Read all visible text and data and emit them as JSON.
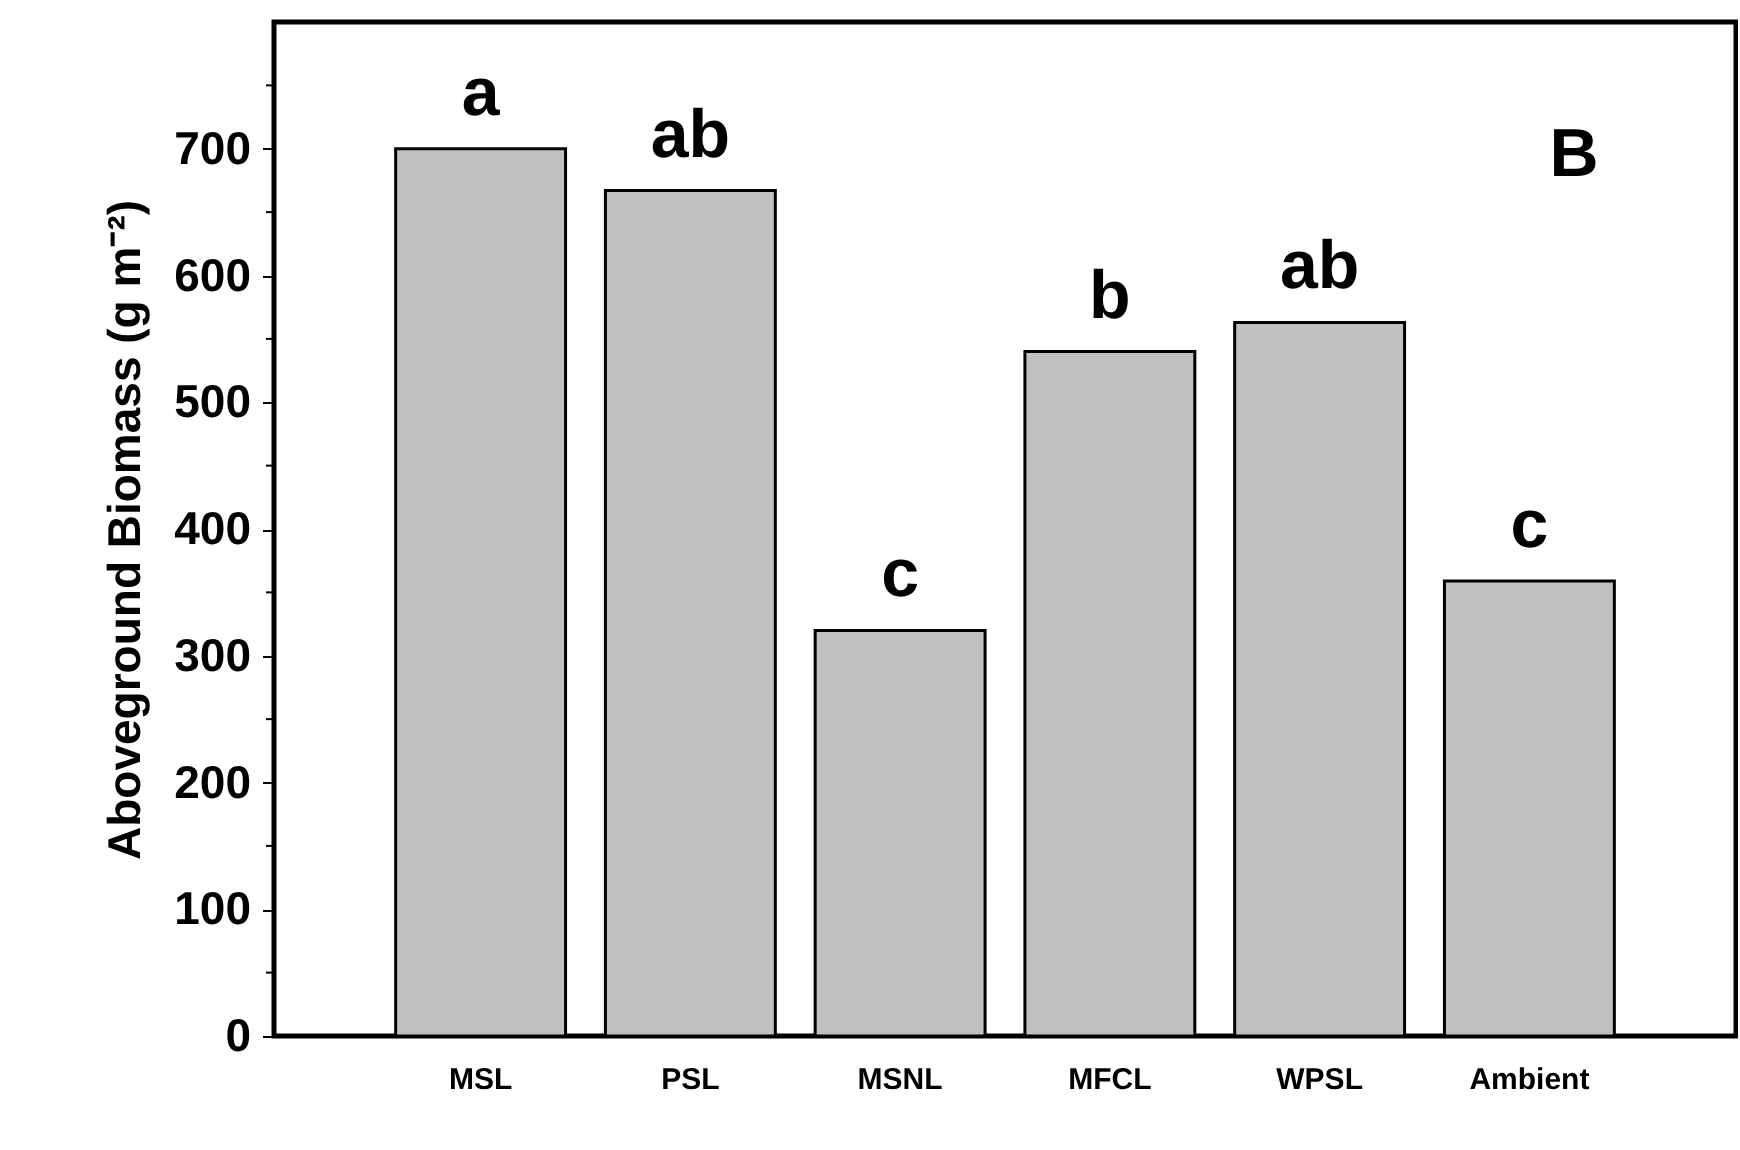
{
  "chart_data": {
    "type": "bar",
    "ylabel": "Aboveground Biomass (g m⁻²)",
    "categories": [
      "MSL",
      "PSL",
      "MSNL",
      "MFCL",
      "WPSL",
      "Ambient"
    ],
    "values": [
      700,
      667,
      320,
      540,
      563,
      359
    ],
    "color": "#c0c0c0",
    "ylim": [
      0,
      800
    ],
    "yticks": [
      0,
      {
        "value": 50,
        "label": null
      },
      100,
      {
        "value": 150,
        "label": null
      },
      200,
      {
        "value": 250,
        "label": null
      },
      300,
      {
        "value": 350,
        "label": null
      },
      400,
      {
        "value": 450,
        "label": null
      },
      500,
      {
        "value": 550,
        "label": null
      },
      600,
      {
        "value": 650,
        "label": null
      },
      700,
      {
        "value": 750,
        "label": null
      }
    ],
    "grid": false,
    "annotations": [
      {
        "text": "a",
        "x": "MSL",
        "y": 700
      },
      {
        "text": "ab",
        "x": "PSL",
        "y": 667
      },
      {
        "text": "c",
        "x": "MSNL",
        "y": 320
      },
      {
        "text": "b",
        "x": "MFCL",
        "y": 540
      },
      {
        "text": "ab",
        "x": "WPSL",
        "y": 563
      },
      {
        "text": "c",
        "x": "Ambient",
        "y": 359
      },
      "B"
    ]
  }
}
